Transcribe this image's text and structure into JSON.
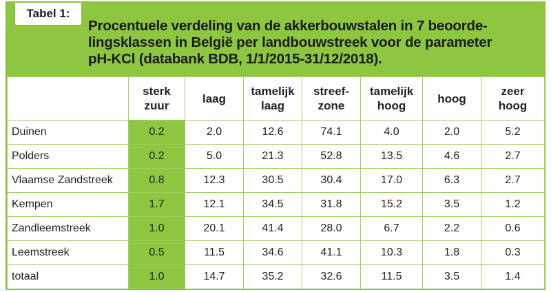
{
  "tab_label": "Tabel 1:",
  "title": "Procentuele verdeling van de akkerbouwstalen in 7 beoordelingsklassen in België per landbouwstreek voor de parameter pH-KCl (databank BDB, 1/1/2015-31/12/2018).",
  "title_lines": [
    "Procentuele verdeling van de akkerbouwstalen in 7 beoorde-",
    "lingsklassen in België per landbouwstreek voor de parameter",
    "pH-KCl (databank BDB, 1/1/2015-31/12/2018)."
  ],
  "columns": [
    [
      "sterk",
      "zuur"
    ],
    [
      "laag"
    ],
    [
      "tamelijk",
      "laag"
    ],
    [
      "streef-",
      "zone"
    ],
    [
      "tamelijk",
      "hoog"
    ],
    [
      "hoog"
    ],
    [
      "zeer",
      "hoog"
    ]
  ],
  "highlight_color": "#8dc63f",
  "rows": [
    {
      "region": "Duinen",
      "values": [
        "0.2",
        "2.0",
        "12.6",
        "74.1",
        "4.0",
        "2.0",
        "5.2"
      ]
    },
    {
      "region": "Polders",
      "values": [
        "0.2",
        "5.0",
        "21.3",
        "52.8",
        "13.5",
        "4.6",
        "2.7"
      ]
    },
    {
      "region": "Vlaamse Zandstreek",
      "values": [
        "0.8",
        "12.3",
        "30.5",
        "30.4",
        "17.0",
        "6.3",
        "2.7"
      ]
    },
    {
      "region": "Kempen",
      "values": [
        "1.7",
        "12.1",
        "34.5",
        "31.8",
        "15.2",
        "3.5",
        "1.2"
      ]
    },
    {
      "region": "Zandleemstreek",
      "values": [
        "1.0",
        "20.1",
        "41.4",
        "28.0",
        "6.7",
        "2.2",
        "0.6"
      ]
    },
    {
      "region": "Leemstreek",
      "values": [
        "0.5",
        "11.5",
        "34.6",
        "41.1",
        "10.3",
        "1.8",
        "0.3"
      ]
    },
    {
      "region": "totaal",
      "values": [
        "1.0",
        "14.7",
        "35.2",
        "32.6",
        "11.5",
        "3.5",
        "1.4"
      ]
    }
  ]
}
